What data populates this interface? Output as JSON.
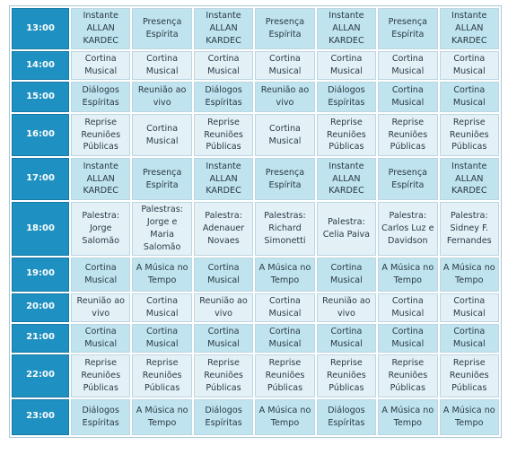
{
  "rows": [
    {
      "time": "13:00",
      "shade": "dark",
      "cells": [
        "Instante ALLAN KARDEC",
        "Presença Espírita",
        "Instante ALLAN KARDEC",
        "Presença Espírita",
        "Instante ALLAN KARDEC",
        "Presença Espírita",
        "Instante ALLAN KARDEC"
      ]
    },
    {
      "time": "14:00",
      "shade": "light",
      "cells": [
        "Cortina Musical",
        "Cortina Musical",
        "Cortina Musical",
        "Cortina Musical",
        "Cortina Musical",
        "Cortina Musical",
        "Cortina Musical"
      ]
    },
    {
      "time": "15:00",
      "shade": "dark",
      "cells": [
        "Diálogos Espíritas",
        "Reunião ao vivo",
        "Diálogos Espíritas",
        "Reunião ao vivo",
        "Diálogos Espíritas",
        "Cortina Musical",
        "Cortina Musical"
      ]
    },
    {
      "time": "16:00",
      "shade": "light",
      "cells": [
        "Reprise Reuniões Públicas",
        "Cortina Musical",
        "Reprise Reuniões Públicas",
        "Cortina Musical",
        "Reprise Reuniões Públicas",
        "Reprise Reuniões Públicas",
        "Reprise Reuniões Públicas"
      ]
    },
    {
      "time": "17:00",
      "shade": "dark",
      "cells": [
        "Instante ALLAN KARDEC",
        "Presença Espírita",
        "Instante ALLAN KARDEC",
        "Presença Espírita",
        "Instante ALLAN KARDEC",
        "Presença Espírita",
        "Instante ALLAN KARDEC"
      ]
    },
    {
      "time": "18:00",
      "shade": "light",
      "cells": [
        "Palestra: Jorge Salomão",
        "Palestras: Jorge e Maria Salomão",
        "Palestra: Adenauer Novaes",
        "Palestras: Richard Simonetti",
        "Palestra: Celia Paiva",
        "Palestra: Carlos Luz e Davidson",
        "Palestra: Sidney F. Fernandes"
      ]
    },
    {
      "time": "19:00",
      "shade": "dark",
      "cells": [
        "Cortina Musical",
        "A Música no Tempo",
        "Cortina Musical",
        "A Música no Tempo",
        "Cortina Musical",
        "A Música no Tempo",
        "A Música no Tempo"
      ]
    },
    {
      "time": "20:00",
      "shade": "light",
      "cells": [
        "Reunião ao vivo",
        "Cortina Musical",
        "Reunião ao vivo",
        "Cortina Musical",
        "Reunião ao vivo",
        "Cortina Musical",
        "Cortina Musical"
      ]
    },
    {
      "time": "21:00",
      "shade": "dark",
      "cells": [
        "Cortina Musical",
        "Cortina Musical",
        "Cortina Musical",
        "Cortina Musical",
        "Cortina Musical",
        "Cortina Musical",
        "Cortina Musical"
      ]
    },
    {
      "time": "22:00",
      "shade": "light",
      "cells": [
        "Reprise Reuniões Públicas",
        "Reprise Reuniões Públicas",
        "Reprise Reuniões Públicas",
        "Reprise Reuniões Públicas",
        "Reprise Reuniões Públicas",
        "Reprise Reuniões Públicas",
        "Reprise Reuniões Públicas"
      ]
    },
    {
      "time": "23:00",
      "shade": "dark",
      "cells": [
        "Diálogos Espíritas",
        "A Música no Tempo",
        "Diálogos Espíritas",
        "A Música no Tempo",
        "Diálogos Espíritas",
        "A Música no Tempo",
        "A Música no Tempo"
      ]
    }
  ],
  "colors": {
    "time_cell": "#1e90c1",
    "row_dark": "#bfe3ef",
    "row_light": "#e3f1f7",
    "text": "#2a3a44"
  }
}
